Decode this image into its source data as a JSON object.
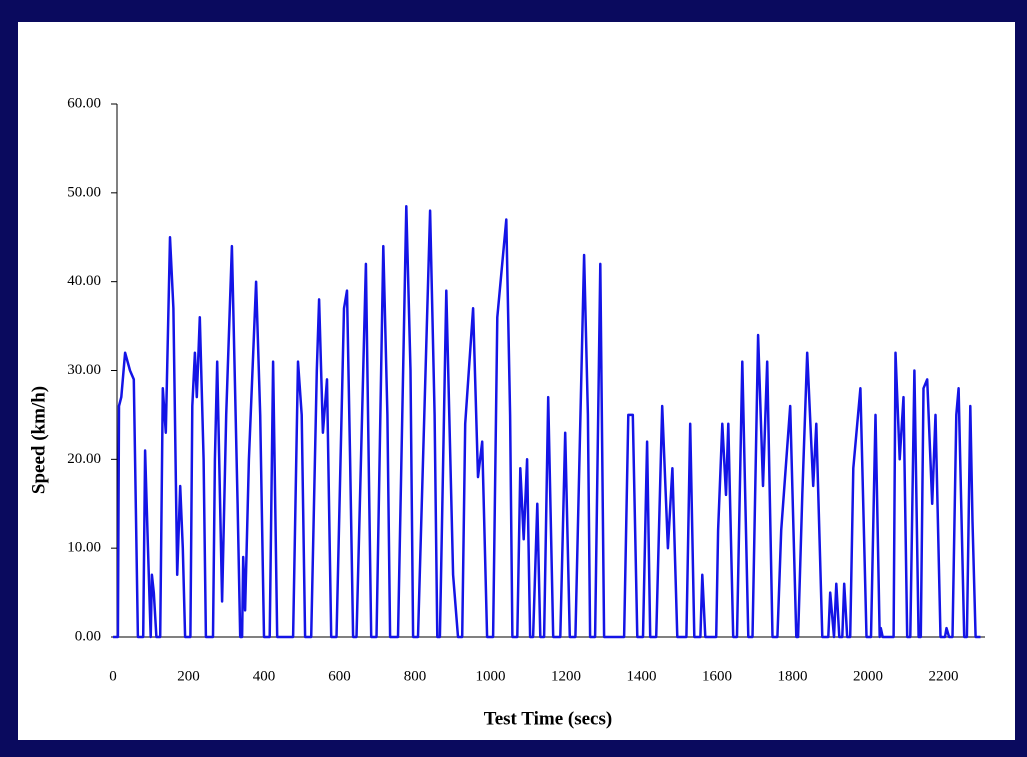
{
  "chart_data": {
    "type": "line",
    "x_label": "Test Time (secs)",
    "y_label": "Speed (km/h)",
    "color": "#1414e6",
    "xlim": [
      0,
      2310
    ],
    "ylim": [
      0,
      60
    ],
    "xticks": [
      0,
      200,
      400,
      600,
      800,
      1000,
      1200,
      1400,
      1600,
      1800,
      2000,
      2200
    ],
    "yticks": [
      {
        "value": 0,
        "label": "0.00"
      },
      {
        "value": 10,
        "label": "10.00"
      },
      {
        "value": 20,
        "label": "20.00"
      },
      {
        "value": 30,
        "label": "30.00"
      },
      {
        "value": 40,
        "label": "40.00"
      },
      {
        "value": 50,
        "label": "50.00"
      },
      {
        "value": 60,
        "label": "60.00"
      }
    ],
    "x": [
      0,
      13,
      16,
      22,
      32,
      45,
      55,
      66,
      80,
      85,
      92,
      100,
      103,
      108,
      115,
      125,
      132,
      140,
      151,
      160,
      170,
      178,
      185,
      191,
      205,
      210,
      217,
      222,
      230,
      240,
      246,
      265,
      270,
      276,
      289,
      300,
      315,
      330,
      337,
      342,
      345,
      350,
      360,
      379,
      390,
      400,
      415,
      424,
      435,
      477,
      490,
      500,
      509,
      525,
      540,
      546,
      556,
      567,
      578,
      592,
      612,
      620,
      628,
      636,
      645,
      670,
      684,
      698,
      716,
      727,
      734,
      755,
      777,
      788,
      795,
      808,
      840,
      852,
      859,
      866,
      883,
      901,
      914,
      925,
      933,
      954,
      967,
      978,
      991,
      1007,
      1018,
      1042,
      1052,
      1058,
      1071,
      1079,
      1088,
      1097,
      1105,
      1113,
      1124,
      1132,
      1142,
      1153,
      1166,
      1185,
      1198,
      1210,
      1225,
      1248,
      1258,
      1264,
      1277,
      1291,
      1301,
      1354,
      1365,
      1377,
      1389,
      1404,
      1415,
      1423,
      1439,
      1455,
      1470,
      1482,
      1495,
      1519,
      1529,
      1540,
      1556,
      1561,
      1569,
      1598,
      1603,
      1614,
      1624,
      1630,
      1643,
      1653,
      1667,
      1683,
      1694,
      1709,
      1722,
      1733,
      1747,
      1760,
      1770,
      1794,
      1810,
      1815,
      1826,
      1839,
      1855,
      1863,
      1879,
      1895,
      1900,
      1910,
      1916,
      1924,
      1932,
      1937,
      1945,
      1953,
      1961,
      1980,
      1996,
      2008,
      2020,
      2031,
      2034,
      2039,
      2068,
      2073,
      2084,
      2094,
      2104,
      2112,
      2123,
      2134,
      2140,
      2147,
      2157,
      2170,
      2179,
      2192,
      2204,
      2208,
      2215,
      2224,
      2234,
      2240,
      2255,
      2262,
      2271,
      2277,
      2285,
      2298
    ],
    "values": [
      0,
      0,
      26,
      27,
      32,
      30,
      29,
      0,
      0,
      21,
      11,
      0,
      7,
      5,
      0,
      0,
      28,
      23,
      45,
      37,
      7,
      17,
      10,
      0,
      0,
      26,
      32,
      27,
      36,
      20,
      0,
      0,
      20,
      31,
      4,
      25,
      44,
      15,
      0,
      0,
      9,
      3,
      20,
      40,
      25,
      0,
      0,
      31,
      0,
      0,
      31,
      25,
      0,
      0,
      30,
      38,
      23,
      29,
      0,
      0,
      37,
      39,
      20,
      0,
      0,
      42,
      0,
      0,
      44,
      25,
      0,
      0,
      48.5,
      30,
      0,
      0,
      48,
      25,
      0,
      0,
      39,
      7,
      0,
      0,
      24,
      37,
      18,
      22,
      0,
      0,
      36,
      47,
      25,
      0,
      0,
      19,
      11,
      20,
      0,
      0,
      15,
      0,
      0,
      27,
      0,
      0,
      23,
      0,
      0,
      43,
      25,
      0,
      0,
      42,
      0,
      0,
      25,
      25,
      0,
      0,
      22,
      0,
      0,
      26,
      10,
      19,
      0,
      0,
      24,
      0,
      0,
      7,
      0,
      0,
      12,
      24,
      16,
      24,
      0,
      0,
      31,
      0,
      0,
      34,
      17,
      31,
      0,
      0,
      12,
      26,
      0,
      0,
      16,
      32,
      17,
      24,
      0,
      0,
      5,
      0,
      6,
      0,
      0,
      6,
      0,
      0,
      19,
      28,
      0,
      0,
      25,
      0,
      1,
      0,
      0,
      32,
      20,
      27,
      0,
      0,
      30,
      0,
      0,
      28,
      29,
      15,
      25,
      0,
      0,
      1,
      0,
      0,
      25,
      28,
      0,
      0,
      26,
      13,
      0,
      0
    ]
  }
}
